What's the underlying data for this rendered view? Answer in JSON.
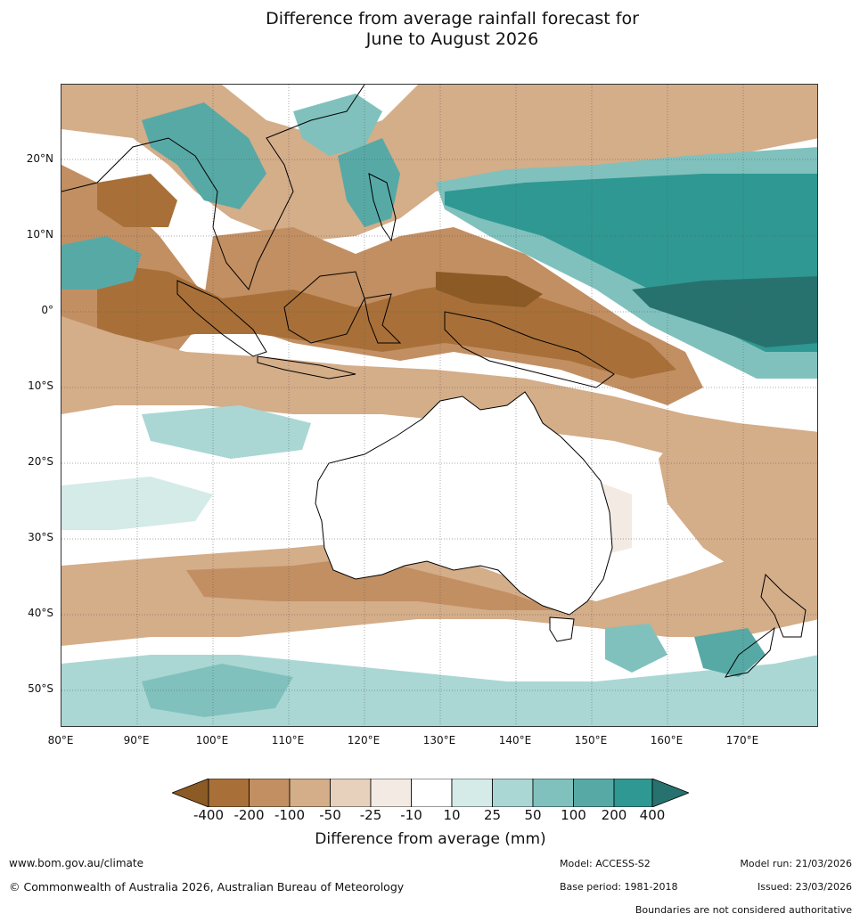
{
  "title": {
    "line1": "Difference from average rainfall forecast for",
    "line2": "June to August 2026"
  },
  "axes": {
    "lat_labels": [
      "20°N",
      "10°N",
      "0°",
      "10°S",
      "20°S",
      "30°S",
      "40°S",
      "50°S"
    ],
    "lon_labels": [
      "80°E",
      "90°E",
      "100°E",
      "110°E",
      "120°E",
      "130°E",
      "140°E",
      "150°E",
      "160°E",
      "170°E"
    ]
  },
  "legend": {
    "title": "Difference from average (mm)",
    "ticks": [
      "-400",
      "-200",
      "-100",
      "-50",
      "-25",
      "-10",
      "10",
      "25",
      "50",
      "100",
      "200",
      "400"
    ],
    "colors": [
      "#8c5a25",
      "#a87038",
      "#c28f62",
      "#d4ad89",
      "#e7d1bc",
      "#f3ebe3",
      "#ffffff",
      "#d4ebe8",
      "#aad7d4",
      "#80c1bd",
      "#57a9a6",
      "#2f9892",
      "#27726f"
    ]
  },
  "footer": {
    "website": "www.bom.gov.au/climate",
    "copyright": "© Commonwealth of Australia 2026, Australian Bureau of Meteorology",
    "model": "Model: ACCESS-S2",
    "base_period": "Base period: 1981-2018",
    "model_run": "Model run: 21/03/2026",
    "issued": "Issued: 23/03/2026",
    "disclaimer": "Boundaries are not considered authoritative"
  }
}
